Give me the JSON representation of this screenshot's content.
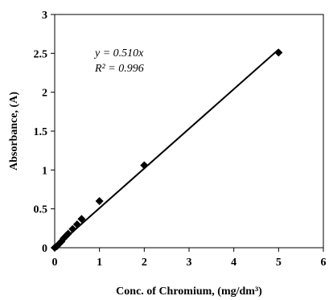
{
  "chart_data": {
    "type": "scatter",
    "title": "",
    "xlabel": "Conc. of Chromium, (mg/dm³)",
    "ylabel": "Absorbance, (A)",
    "xlim": [
      0,
      6
    ],
    "ylim": [
      0,
      3
    ],
    "x_ticks": [
      "0",
      "1",
      "2",
      "3",
      "4",
      "5",
      "6"
    ],
    "y_ticks": [
      "0",
      "0.5",
      "1",
      "1.5",
      "2",
      "2.5",
      "3"
    ],
    "grid": false,
    "legend": "none",
    "series": [
      {
        "marker": "diamond",
        "color": "#000000",
        "points": [
          {
            "x": 0.0,
            "y": 0.0
          },
          {
            "x": 0.05,
            "y": 0.02
          },
          {
            "x": 0.1,
            "y": 0.05
          },
          {
            "x": 0.15,
            "y": 0.08
          },
          {
            "x": 0.2,
            "y": 0.12
          },
          {
            "x": 0.25,
            "y": 0.15
          },
          {
            "x": 0.3,
            "y": 0.18
          },
          {
            "x": 0.4,
            "y": 0.24
          },
          {
            "x": 0.5,
            "y": 0.3
          },
          {
            "x": 0.6,
            "y": 0.37
          },
          {
            "x": 1.0,
            "y": 0.6
          },
          {
            "x": 2.0,
            "y": 1.06
          },
          {
            "x": 5.0,
            "y": 2.51
          }
        ]
      }
    ],
    "trendline": {
      "slope": 0.51,
      "x_range": [
        0,
        5
      ],
      "color": "#000000"
    },
    "annotations": {
      "equation": "y = 0.510x",
      "r_squared": "R² = 0.996"
    }
  }
}
